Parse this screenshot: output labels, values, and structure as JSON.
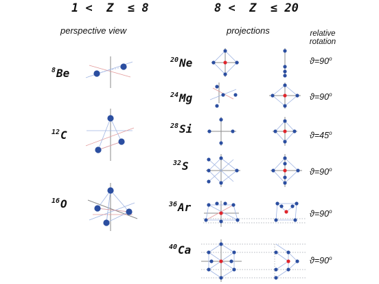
{
  "headers": {
    "left": "1 <  Z  ≤ 8",
    "right": "8 <  Z  ≤ 20"
  },
  "subheaders": {
    "perspective": "perspective view",
    "projections": "projections",
    "relative_rotation_line1": "relative",
    "relative_rotation_line2": "rotation"
  },
  "left_nuclei": [
    {
      "mass": "8",
      "symbol": "Be"
    },
    {
      "mass": "12",
      "symbol": "C"
    },
    {
      "mass": "16",
      "symbol": "O"
    }
  ],
  "right_nuclei": [
    {
      "mass": "20",
      "symbol": "Ne",
      "theta": "ϑ=90",
      "deg": "o"
    },
    {
      "mass": "24",
      "symbol": "Mg",
      "theta": "ϑ=90",
      "deg": "o"
    },
    {
      "mass": "28",
      "symbol": "Si",
      "theta": "ϑ=45",
      "deg": "o"
    },
    {
      "mass": "32",
      "symbol": "S",
      "theta": "ϑ=90",
      "deg": "o"
    },
    {
      "mass": "36",
      "symbol": "Ar",
      "theta": "ϑ=90",
      "deg": "o"
    },
    {
      "mass": "40",
      "symbol": "Ca",
      "theta": "ϑ=90",
      "deg": "o"
    }
  ],
  "colors": {
    "alpha_particle": "#2b4ea0",
    "center": "#e0252b",
    "axis": "#808080",
    "edge_blue": "#8fa8dc",
    "edge_red": "#e08a8a"
  }
}
